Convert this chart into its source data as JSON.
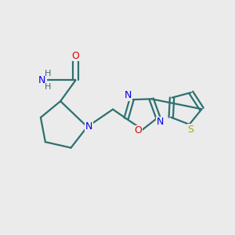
{
  "background_color": "#ebebeb",
  "bond_color": "#2d7070",
  "n_color": "#0000ee",
  "o_color": "#dd0000",
  "s_color": "#aaaa00",
  "line_width": 1.6,
  "fig_size": [
    3.0,
    3.0
  ],
  "dpi": 100,
  "xlim": [
    0,
    10
  ],
  "ylim": [
    0,
    10
  ]
}
